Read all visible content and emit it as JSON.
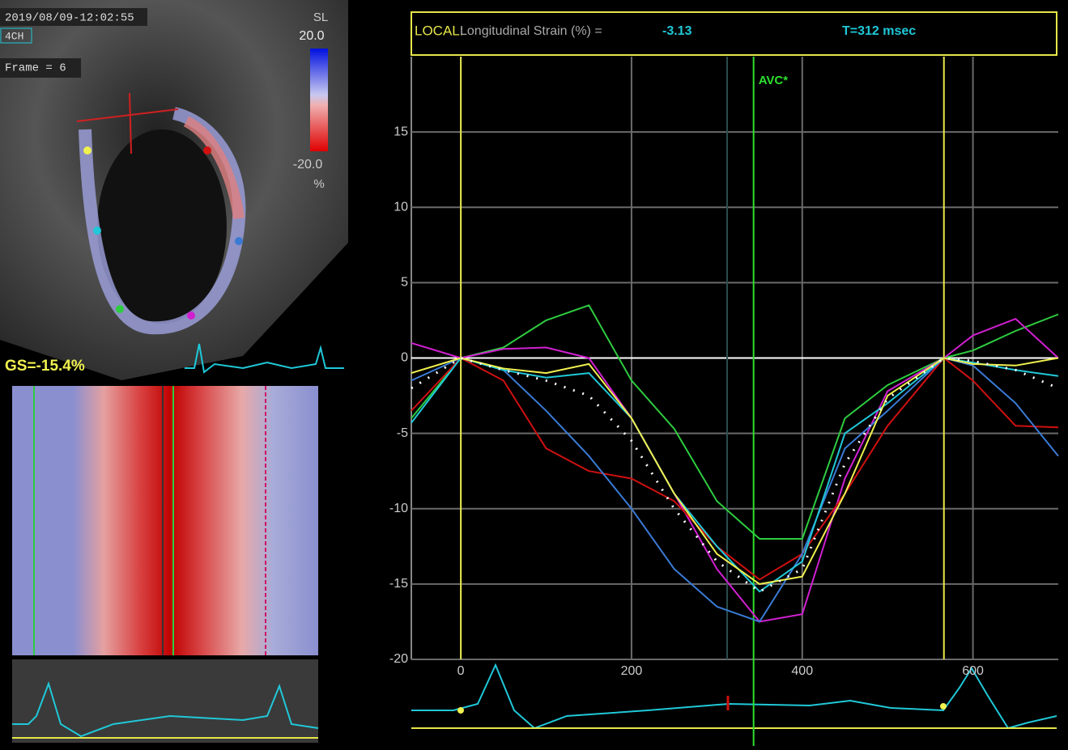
{
  "header": {
    "timestamp": "2019/08/09-12:02:55",
    "view": "4CH",
    "frame": "Frame = 6"
  },
  "color_scale": {
    "title": "SL",
    "max": "20.0",
    "min": "-20.0",
    "unit": "%"
  },
  "global_strain": "GS=-15.4%",
  "chart_data": {
    "type": "line",
    "title_prefix": "LOCAL:",
    "title": "Longitudinal Strain (%) =",
    "current_value": "-3.13",
    "time_label": "T=312 msec",
    "x": [
      -58,
      0,
      50,
      100,
      150,
      200,
      250,
      300,
      350,
      400,
      450,
      500,
      566,
      600,
      650,
      700
    ],
    "series": [
      {
        "color": "#2ecc40",
        "values": [
          -4,
          0,
          0.7,
          2.5,
          3.5,
          -1.5,
          -4.7,
          -9.5,
          -12,
          -12,
          -4,
          -1.8,
          0,
          0.5,
          1.8,
          2.9
        ]
      },
      {
        "color": "#d020d0",
        "values": [
          1,
          0,
          0.6,
          0.7,
          0,
          -4,
          -9,
          -14,
          -17.5,
          -17,
          -8,
          -2.2,
          0,
          1.5,
          2.6,
          0
        ]
      },
      {
        "color": "#d01010",
        "values": [
          -3.5,
          0,
          -1.5,
          -6,
          -7.5,
          -8,
          -9.5,
          -12.5,
          -14.7,
          -13,
          -9,
          -4.5,
          0,
          -1.5,
          -4.5,
          -4.6
        ]
      },
      {
        "color": "#3a7bd5",
        "values": [
          -1.5,
          0,
          -0.8,
          -3.5,
          -6.5,
          -10,
          -14,
          -16.5,
          -17.5,
          -13,
          -6,
          -3.5,
          0,
          -0.5,
          -3,
          -6.5
        ]
      },
      {
        "color": "#20c8d8",
        "values": [
          -4.3,
          0,
          -0.8,
          -1.3,
          -1,
          -4,
          -9,
          -12.5,
          -15.5,
          -13.5,
          -5,
          -3,
          0,
          -0.3,
          -0.8,
          -1.2
        ]
      },
      {
        "color": "#f0f050",
        "values": [
          -1,
          0,
          -0.7,
          -1,
          -0.4,
          -4,
          -9,
          -13,
          -15,
          -14.5,
          -9,
          -2.5,
          0,
          -0.4,
          -0.5,
          0
        ]
      },
      {
        "color": "#ffffff",
        "dotted": true,
        "values": [
          -2,
          0,
          -0.8,
          -1.5,
          -2.5,
          -5.5,
          -10,
          -13.5,
          -15.5,
          -14,
          -7,
          -2.7,
          0,
          -0.2,
          -0.8,
          -2
        ]
      }
    ],
    "xlim": [
      -58,
      700
    ],
    "ylim": [
      -20,
      20
    ],
    "xticks": [
      0,
      200,
      400,
      600
    ],
    "yticks": [
      15,
      10,
      5,
      0,
      -5,
      -10,
      -15,
      -20
    ],
    "grid": true,
    "vlines": [
      {
        "x": 0,
        "color": "#e6e64a"
      },
      {
        "x": 566,
        "color": "#e6e64a"
      },
      {
        "x": 312,
        "color": "#2c4c4c"
      }
    ],
    "annotations": [
      {
        "text": "AVC*",
        "x": 343,
        "color": "#2ee02e"
      }
    ]
  }
}
